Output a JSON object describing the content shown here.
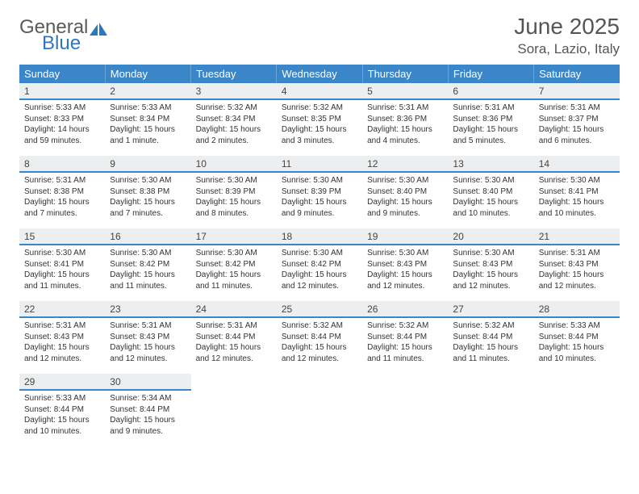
{
  "logo": {
    "word1": "General",
    "word2": "Blue",
    "color1": "#5a5a5a",
    "color2": "#2f77bd",
    "sail_color": "#2f77bd"
  },
  "title": "June 2025",
  "location": "Sora, Lazio, Italy",
  "colors": {
    "header_bg": "#3b86c8",
    "header_text": "#ffffff",
    "daynum_bg": "#eceeef",
    "daynum_border": "#3b86c8",
    "cell_text": "#333333"
  },
  "day_headers": [
    "Sunday",
    "Monday",
    "Tuesday",
    "Wednesday",
    "Thursday",
    "Friday",
    "Saturday"
  ],
  "weeks": [
    [
      {
        "n": "1",
        "sr": "5:33 AM",
        "ss": "8:33 PM",
        "dl": "14 hours and 59 minutes."
      },
      {
        "n": "2",
        "sr": "5:33 AM",
        "ss": "8:34 PM",
        "dl": "15 hours and 1 minute."
      },
      {
        "n": "3",
        "sr": "5:32 AM",
        "ss": "8:34 PM",
        "dl": "15 hours and 2 minutes."
      },
      {
        "n": "4",
        "sr": "5:32 AM",
        "ss": "8:35 PM",
        "dl": "15 hours and 3 minutes."
      },
      {
        "n": "5",
        "sr": "5:31 AM",
        "ss": "8:36 PM",
        "dl": "15 hours and 4 minutes."
      },
      {
        "n": "6",
        "sr": "5:31 AM",
        "ss": "8:36 PM",
        "dl": "15 hours and 5 minutes."
      },
      {
        "n": "7",
        "sr": "5:31 AM",
        "ss": "8:37 PM",
        "dl": "15 hours and 6 minutes."
      }
    ],
    [
      {
        "n": "8",
        "sr": "5:31 AM",
        "ss": "8:38 PM",
        "dl": "15 hours and 7 minutes."
      },
      {
        "n": "9",
        "sr": "5:30 AM",
        "ss": "8:38 PM",
        "dl": "15 hours and 7 minutes."
      },
      {
        "n": "10",
        "sr": "5:30 AM",
        "ss": "8:39 PM",
        "dl": "15 hours and 8 minutes."
      },
      {
        "n": "11",
        "sr": "5:30 AM",
        "ss": "8:39 PM",
        "dl": "15 hours and 9 minutes."
      },
      {
        "n": "12",
        "sr": "5:30 AM",
        "ss": "8:40 PM",
        "dl": "15 hours and 9 minutes."
      },
      {
        "n": "13",
        "sr": "5:30 AM",
        "ss": "8:40 PM",
        "dl": "15 hours and 10 minutes."
      },
      {
        "n": "14",
        "sr": "5:30 AM",
        "ss": "8:41 PM",
        "dl": "15 hours and 10 minutes."
      }
    ],
    [
      {
        "n": "15",
        "sr": "5:30 AM",
        "ss": "8:41 PM",
        "dl": "15 hours and 11 minutes."
      },
      {
        "n": "16",
        "sr": "5:30 AM",
        "ss": "8:42 PM",
        "dl": "15 hours and 11 minutes."
      },
      {
        "n": "17",
        "sr": "5:30 AM",
        "ss": "8:42 PM",
        "dl": "15 hours and 11 minutes."
      },
      {
        "n": "18",
        "sr": "5:30 AM",
        "ss": "8:42 PM",
        "dl": "15 hours and 12 minutes."
      },
      {
        "n": "19",
        "sr": "5:30 AM",
        "ss": "8:43 PM",
        "dl": "15 hours and 12 minutes."
      },
      {
        "n": "20",
        "sr": "5:30 AM",
        "ss": "8:43 PM",
        "dl": "15 hours and 12 minutes."
      },
      {
        "n": "21",
        "sr": "5:31 AM",
        "ss": "8:43 PM",
        "dl": "15 hours and 12 minutes."
      }
    ],
    [
      {
        "n": "22",
        "sr": "5:31 AM",
        "ss": "8:43 PM",
        "dl": "15 hours and 12 minutes."
      },
      {
        "n": "23",
        "sr": "5:31 AM",
        "ss": "8:43 PM",
        "dl": "15 hours and 12 minutes."
      },
      {
        "n": "24",
        "sr": "5:31 AM",
        "ss": "8:44 PM",
        "dl": "15 hours and 12 minutes."
      },
      {
        "n": "25",
        "sr": "5:32 AM",
        "ss": "8:44 PM",
        "dl": "15 hours and 12 minutes."
      },
      {
        "n": "26",
        "sr": "5:32 AM",
        "ss": "8:44 PM",
        "dl": "15 hours and 11 minutes."
      },
      {
        "n": "27",
        "sr": "5:32 AM",
        "ss": "8:44 PM",
        "dl": "15 hours and 11 minutes."
      },
      {
        "n": "28",
        "sr": "5:33 AM",
        "ss": "8:44 PM",
        "dl": "15 hours and 10 minutes."
      }
    ],
    [
      {
        "n": "29",
        "sr": "5:33 AM",
        "ss": "8:44 PM",
        "dl": "15 hours and 10 minutes."
      },
      {
        "n": "30",
        "sr": "5:34 AM",
        "ss": "8:44 PM",
        "dl": "15 hours and 9 minutes."
      },
      null,
      null,
      null,
      null,
      null
    ]
  ],
  "labels": {
    "sunrise": "Sunrise: ",
    "sunset": "Sunset: ",
    "daylight": "Daylight: "
  }
}
